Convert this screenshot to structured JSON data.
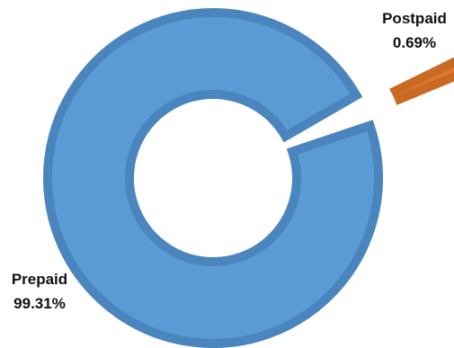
{
  "chart_data": {
    "type": "pie",
    "variant": "donut",
    "exploded_slice": "Postpaid",
    "slices": [
      {
        "name": "Prepaid",
        "value": 99.31,
        "label": "99.31%",
        "color": "#5b9bd5",
        "edge_color": "#4a85bd"
      },
      {
        "name": "Postpaid",
        "value": 0.69,
        "label": "0.69%",
        "color": "#e07a30",
        "edge_color": "#c96a22"
      }
    ],
    "legend": "none"
  }
}
